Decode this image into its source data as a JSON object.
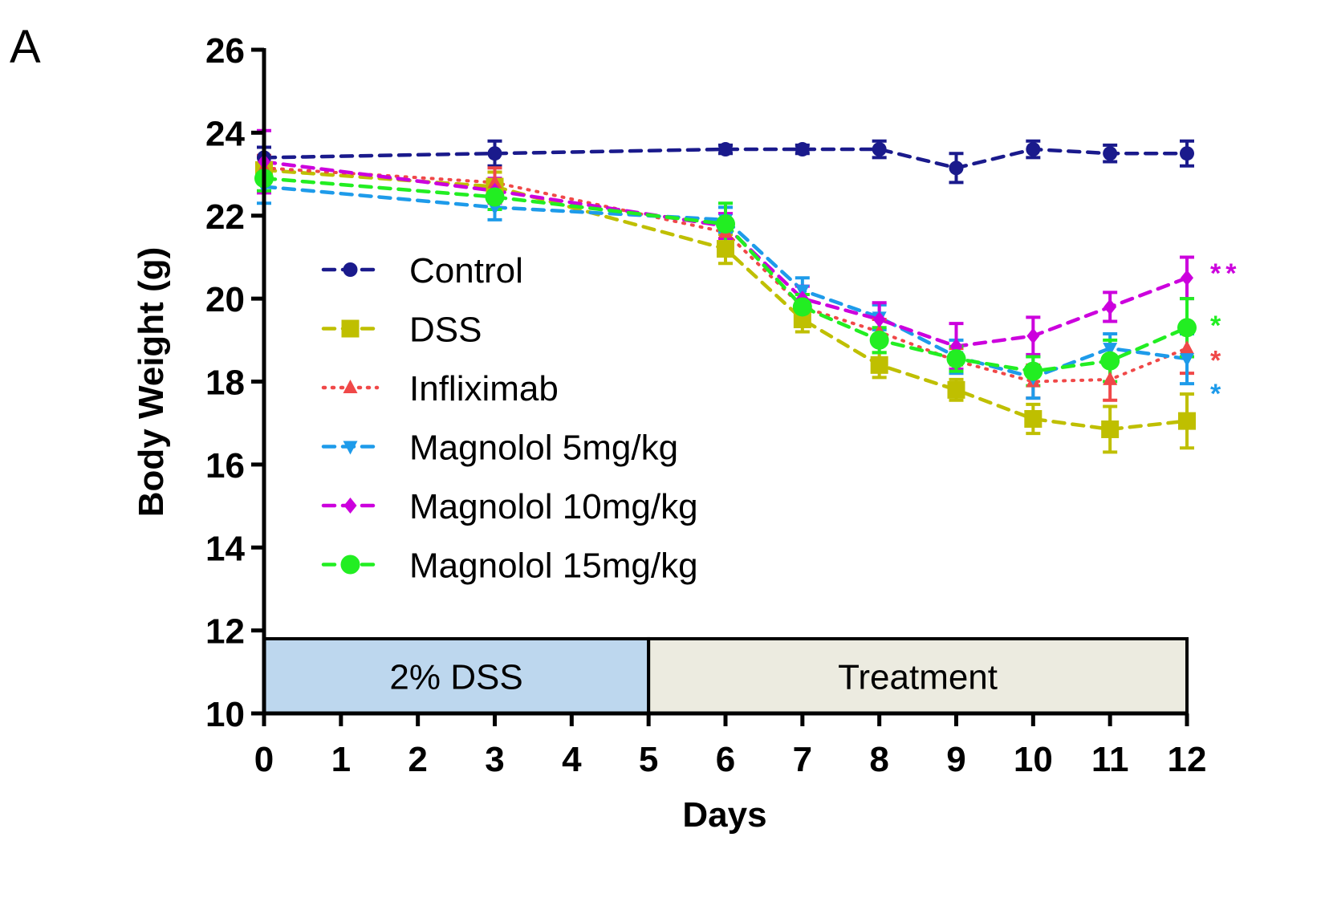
{
  "panel_label": "A",
  "chart_data": {
    "type": "line",
    "title": "",
    "xlabel": "Days",
    "ylabel": "Body Weight (g)",
    "xlim": [
      0,
      12
    ],
    "ylim": [
      10,
      26
    ],
    "xticks": [
      0,
      1,
      2,
      3,
      4,
      5,
      6,
      7,
      8,
      9,
      10,
      11,
      12
    ],
    "yticks": [
      10,
      12,
      14,
      16,
      18,
      20,
      22,
      24,
      26
    ],
    "grid": false,
    "legend_position": "center-left",
    "phases": [
      {
        "label": "2% DSS",
        "start": 0,
        "end": 5,
        "color": "#bdd7ee"
      },
      {
        "label": "Treatment",
        "start": 5,
        "end": 12,
        "color": "#ecebe0"
      }
    ],
    "series": [
      {
        "name": "Control",
        "color": "#1a1a8c",
        "marker": "circle",
        "dash": "dashed",
        "x": [
          0,
          3,
          6,
          7,
          8,
          9,
          10,
          11,
          12
        ],
        "values": [
          23.4,
          23.5,
          23.6,
          23.6,
          23.6,
          23.15,
          23.6,
          23.5,
          23.5
        ],
        "errors": [
          0.25,
          0.3,
          0.1,
          0.1,
          0.2,
          0.35,
          0.2,
          0.2,
          0.3
        ],
        "significance": ""
      },
      {
        "name": "DSS",
        "color": "#bfbf00",
        "marker": "square",
        "dash": "dashed",
        "x": [
          0,
          3,
          6,
          7,
          8,
          9,
          10,
          11,
          12
        ],
        "values": [
          23.1,
          22.7,
          21.2,
          19.5,
          18.4,
          17.8,
          17.1,
          16.85,
          17.05
        ],
        "errors": [
          0.3,
          0.35,
          0.35,
          0.3,
          0.3,
          0.25,
          0.35,
          0.55,
          0.65
        ],
        "significance": ""
      },
      {
        "name": "Infliximab",
        "color": "#f04848",
        "marker": "triangle-up",
        "dash": "dotted",
        "x": [
          0,
          3,
          6,
          7,
          8,
          9,
          10,
          11,
          12
        ],
        "values": [
          23.15,
          22.8,
          21.6,
          19.8,
          19.2,
          18.5,
          18.0,
          18.05,
          18.8
        ],
        "errors": [
          0.3,
          0.35,
          0.3,
          0.3,
          0.3,
          0.3,
          0.4,
          0.5,
          0.6
        ],
        "significance": "*"
      },
      {
        "name": "Magnolol 5mg/kg",
        "color": "#1e9bea",
        "marker": "triangle-down",
        "dash": "dashed",
        "x": [
          0,
          3,
          6,
          7,
          8,
          9,
          10,
          11,
          12
        ],
        "values": [
          22.7,
          22.2,
          21.9,
          20.2,
          19.55,
          18.6,
          18.1,
          18.8,
          18.55
        ],
        "errors": [
          0.4,
          0.3,
          0.3,
          0.3,
          0.3,
          0.4,
          0.5,
          0.35,
          0.6
        ],
        "significance": "*"
      },
      {
        "name": "Magnolol 10mg/kg",
        "color": "#cc00dd",
        "marker": "diamond",
        "dash": "dashed",
        "x": [
          0,
          3,
          6,
          7,
          8,
          9,
          10,
          11,
          12
        ],
        "values": [
          23.3,
          22.6,
          21.75,
          20.0,
          19.5,
          18.85,
          19.1,
          19.8,
          20.5
        ],
        "errors": [
          0.75,
          0.3,
          0.3,
          0.3,
          0.4,
          0.55,
          0.45,
          0.35,
          0.5
        ],
        "significance": "**"
      },
      {
        "name": "Magnolol 15mg/kg",
        "color": "#22ee22",
        "marker": "circle-large",
        "dash": "dashed",
        "x": [
          0,
          3,
          6,
          7,
          8,
          9,
          10,
          11,
          12
        ],
        "values": [
          22.9,
          22.45,
          21.8,
          19.8,
          19.0,
          18.55,
          18.25,
          18.5,
          19.3
        ],
        "errors": [
          0.3,
          0.3,
          0.5,
          0.3,
          0.3,
          0.3,
          0.35,
          0.5,
          0.7
        ],
        "significance": "*"
      }
    ]
  }
}
